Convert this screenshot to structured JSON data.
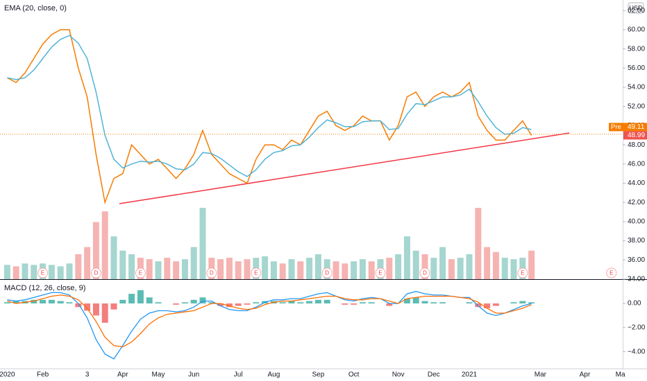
{
  "chart_data": [
    {
      "type": "line",
      "currency": "USD",
      "categories": [
        "2020",
        null,
        null,
        null,
        "Feb",
        null,
        null,
        null,
        null,
        "3",
        null,
        null,
        null,
        "Apr",
        null,
        null,
        null,
        "May",
        null,
        null,
        null,
        "Jun",
        null,
        null,
        null,
        null,
        "Jul",
        null,
        null,
        null,
        "Aug",
        null,
        null,
        null,
        null,
        "Sep",
        null,
        null,
        null,
        "Oct",
        null,
        null,
        null,
        null,
        "Nov",
        null,
        null,
        null,
        "Dec",
        null,
        null,
        null,
        "2021",
        null,
        null,
        null,
        null,
        null,
        null,
        null,
        "Mar",
        null,
        null,
        null,
        null,
        "Apr",
        null,
        null,
        null,
        "Ma"
      ],
      "series": [
        {
          "color": "#f57c00",
          "values": [
            55.0,
            54.5,
            55.5,
            57.0,
            58.5,
            59.5,
            60.0,
            60.0,
            56.0,
            53.0,
            47.0,
            42.0,
            44.5,
            45.0,
            48.0,
            47.0,
            46.0,
            46.5,
            45.5,
            44.5,
            45.5,
            47.0,
            49.5,
            47.0,
            46.0,
            45.0,
            44.5,
            44.0,
            46.5,
            48.0,
            48.0,
            47.5,
            48.5,
            48.0,
            49.5,
            51.0,
            51.5,
            50.0,
            49.5,
            50.0,
            51.0,
            50.5,
            50.5,
            48.5,
            50.0,
            53.0,
            53.5,
            52.0,
            53.0,
            53.5,
            53.0,
            53.5,
            54.5,
            51.0,
            49.5,
            48.5,
            48.5,
            49.5,
            50.5,
            48.99,
            null,
            null,
            null,
            null,
            null,
            null,
            null,
            null,
            null,
            null
          ]
        },
        {
          "name": "EMA (20, close, 0)",
          "color": "#4fb3d9",
          "values": [
            55.0,
            54.8,
            55.0,
            55.8,
            57.0,
            58.2,
            59.0,
            59.4,
            58.6,
            57.0,
            53.5,
            49.0,
            46.5,
            45.6,
            46.0,
            46.3,
            46.2,
            46.3,
            46.0,
            45.5,
            45.4,
            46.0,
            47.2,
            47.1,
            46.6,
            45.9,
            45.2,
            44.7,
            45.4,
            46.5,
            47.2,
            47.4,
            47.9,
            48.0,
            48.8,
            49.8,
            50.6,
            50.3,
            49.9,
            49.9,
            50.4,
            50.5,
            50.5,
            49.6,
            49.7,
            51.2,
            52.3,
            52.2,
            52.6,
            53.0,
            53.0,
            53.2,
            53.8,
            52.5,
            51.0,
            49.8,
            49.1,
            49.2,
            49.8,
            49.6,
            null,
            null,
            null,
            null,
            null,
            null,
            null,
            null,
            null,
            null
          ]
        }
      ],
      "price_tags": [
        {
          "label": "Pre",
          "value": 49.11,
          "color": "#f57c00"
        },
        {
          "value": 48.99,
          "color": "#ef5350"
        }
      ],
      "events": {
        "labels": [
          "E",
          "D",
          "E",
          "D",
          "E",
          "D",
          "E",
          "D",
          "E",
          "E"
        ],
        "x": [
          4,
          10,
          15,
          23,
          28,
          36,
          42,
          47,
          58,
          68
        ]
      },
      "ylim": [
        34,
        63.1
      ],
      "yticks": [
        {
          "value": 34,
          "label": "34.00"
        },
        {
          "value": 36,
          "label": "36.00"
        },
        {
          "value": 38,
          "label": "38.00"
        },
        {
          "value": 40,
          "label": "40.00"
        },
        {
          "value": 42,
          "label": "42.00"
        },
        {
          "value": 44,
          "label": "44.00"
        },
        {
          "value": 46,
          "label": "46.00"
        },
        {
          "value": 48,
          "label": "48.00"
        },
        {
          "value": 50,
          "label": "50.00"
        },
        {
          "value": 52,
          "label": "52.00"
        },
        {
          "value": 54,
          "label": "54.00"
        },
        {
          "value": 56,
          "label": "56.00"
        },
        {
          "value": 58,
          "label": "58.00"
        },
        {
          "value": 60,
          "label": "60.00"
        },
        {
          "value": 62,
          "label": "62.00"
        }
      ]
    },
    {
      "type": "bar",
      "up_color": "#a5d6cf",
      "down_color": "#f5b3b1",
      "ylim": [
        0,
        100
      ],
      "values": [
        20,
        18,
        22,
        20,
        22,
        20,
        18,
        22,
        35,
        45,
        80,
        95,
        60,
        40,
        35,
        30,
        28,
        25,
        30,
        25,
        28,
        45,
        100,
        30,
        28,
        30,
        25,
        28,
        30,
        32,
        25,
        22,
        28,
        25,
        30,
        35,
        28,
        25,
        22,
        25,
        28,
        25,
        28,
        30,
        35,
        60,
        40,
        35,
        30,
        45,
        28,
        30,
        35,
        100,
        45,
        38,
        30,
        28,
        30,
        40,
        null,
        null,
        null,
        null,
        null,
        null,
        null,
        null,
        null,
        null
      ]
    },
    {
      "type": "macd",
      "title": "MACD (12, 26, close, 9)",
      "ylim": [
        -5.4,
        1.9
      ],
      "yticks": [
        {
          "value": 0,
          "label": "0.00"
        },
        {
          "value": -2,
          "label": "−2.00"
        },
        {
          "value": -4,
          "label": "−4.00"
        }
      ],
      "histogram": {
        "up_color": "#26a69a",
        "down_color": "#ef5350",
        "values": [
          0.1,
          0.2,
          0.2,
          0.3,
          0.3,
          0.3,
          0.2,
          0.1,
          -0.3,
          -0.6,
          -1.0,
          -1.6,
          -0.5,
          0.3,
          0.8,
          1.1,
          0.5,
          0.1,
          0.0,
          -0.1,
          0.1,
          0.3,
          0.5,
          0.1,
          -0.2,
          -0.3,
          -0.2,
          -0.1,
          0.1,
          0.2,
          0.2,
          0.1,
          0.2,
          0.1,
          0.2,
          0.3,
          0.3,
          0.0,
          -0.1,
          -0.1,
          0.1,
          0.1,
          0.0,
          -0.2,
          0.0,
          0.4,
          0.5,
          0.2,
          0.1,
          0.1,
          0.0,
          0.0,
          0.1,
          -0.3,
          -0.4,
          -0.2,
          0.0,
          0.1,
          0.2,
          0.1,
          null,
          null,
          null,
          null,
          null,
          null,
          null,
          null,
          null,
          null
        ]
      },
      "series": [
        {
          "color": "#2196f3",
          "values": [
            0.3,
            0.2,
            0.3,
            0.5,
            0.7,
            0.9,
            0.9,
            0.7,
            0.0,
            -1.2,
            -3.0,
            -4.2,
            -4.6,
            -3.5,
            -2.3,
            -1.3,
            -0.8,
            -0.6,
            -0.6,
            -0.7,
            -0.6,
            -0.3,
            0.2,
            0.2,
            -0.2,
            -0.5,
            -0.6,
            -0.6,
            -0.3,
            0.1,
            0.3,
            0.3,
            0.4,
            0.4,
            0.6,
            0.8,
            0.9,
            0.6,
            0.3,
            0.2,
            0.4,
            0.5,
            0.4,
            0.0,
            0.0,
            0.8,
            1.0,
            0.8,
            0.7,
            0.7,
            0.6,
            0.5,
            0.5,
            -0.2,
            -0.8,
            -1.0,
            -0.8,
            -0.5,
            -0.2,
            0.0,
            null,
            null,
            null,
            null,
            null,
            null,
            null,
            null,
            null,
            null
          ]
        },
        {
          "color": "#ff6d00",
          "values": [
            0.2,
            0.0,
            0.1,
            0.2,
            0.4,
            0.6,
            0.7,
            0.6,
            0.3,
            -0.4,
            -1.5,
            -2.8,
            -3.5,
            -3.6,
            -3.2,
            -2.5,
            -1.7,
            -1.2,
            -0.9,
            -0.8,
            -0.7,
            -0.6,
            -0.3,
            0.0,
            0.0,
            -0.2,
            -0.4,
            -0.5,
            -0.4,
            -0.1,
            0.1,
            0.2,
            0.2,
            0.3,
            0.4,
            0.5,
            0.6,
            0.6,
            0.4,
            0.3,
            0.3,
            0.4,
            0.4,
            0.2,
            0.0,
            0.4,
            0.5,
            0.6,
            0.6,
            0.6,
            0.6,
            0.5,
            0.4,
            0.1,
            -0.4,
            -0.8,
            -0.8,
            -0.6,
            -0.4,
            -0.1,
            null,
            null,
            null,
            null,
            null,
            null,
            null,
            null,
            null,
            null
          ]
        }
      ]
    }
  ]
}
